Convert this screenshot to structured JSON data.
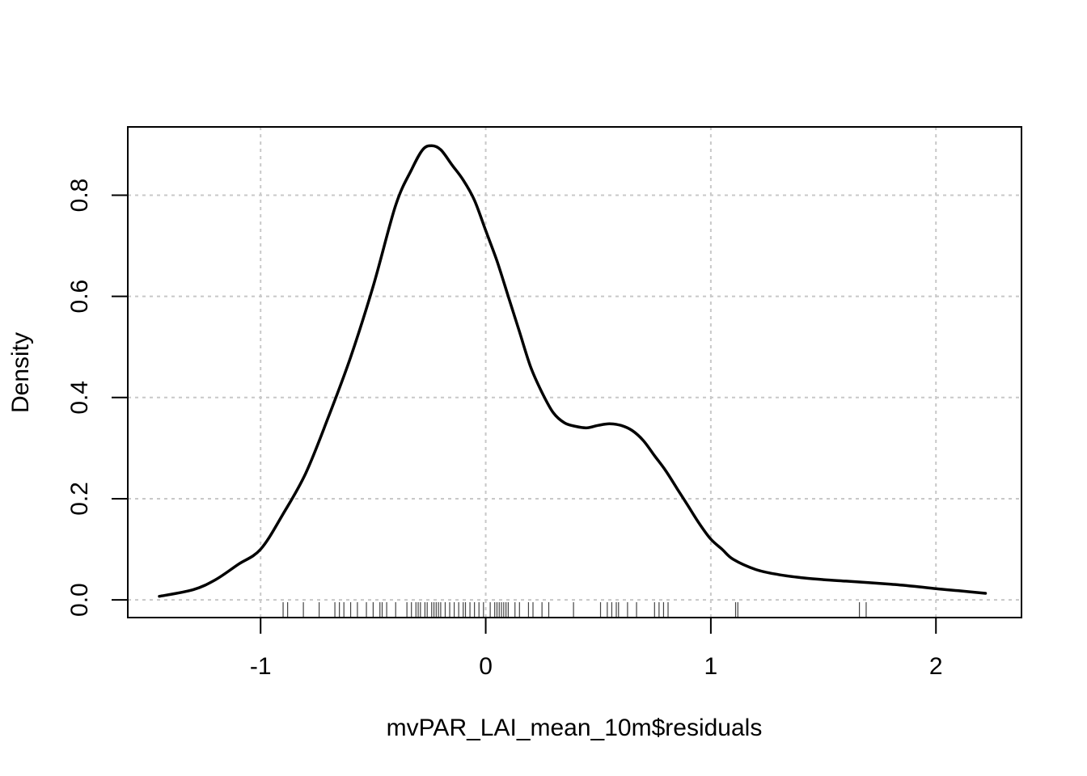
{
  "chart_data": {
    "type": "line",
    "title": "",
    "xlabel": "mvPAR_LAI_mean_10m$residuals",
    "ylabel": "Density",
    "xlim": [
      -1.59,
      2.38
    ],
    "ylim": [
      -0.035,
      0.935
    ],
    "x_ticks": [
      -1,
      0,
      1,
      2
    ],
    "x_tick_labels": [
      "-1",
      "0",
      "1",
      "2"
    ],
    "y_ticks": [
      0.0,
      0.2,
      0.4,
      0.6,
      0.8
    ],
    "y_tick_labels": [
      "0.0",
      "0.2",
      "0.4",
      "0.6",
      "0.8"
    ],
    "grid": true,
    "series": [
      {
        "x": [
          -1.45,
          -1.3,
          -1.2,
          -1.1,
          -1.0,
          -0.9,
          -0.8,
          -0.7,
          -0.6,
          -0.5,
          -0.4,
          -0.33,
          -0.28,
          -0.24,
          -0.2,
          -0.15,
          -0.1,
          -0.05,
          0.0,
          0.05,
          0.1,
          0.15,
          0.2,
          0.25,
          0.3,
          0.35,
          0.4,
          0.45,
          0.5,
          0.55,
          0.6,
          0.65,
          0.7,
          0.75,
          0.8,
          0.85,
          0.9,
          0.95,
          1.0,
          1.05,
          1.1,
          1.2,
          1.3,
          1.4,
          1.5,
          1.6,
          1.7,
          1.8,
          1.9,
          2.0,
          2.1,
          2.22
        ],
        "y": [
          0.007,
          0.02,
          0.04,
          0.07,
          0.1,
          0.17,
          0.25,
          0.36,
          0.48,
          0.62,
          0.78,
          0.85,
          0.89,
          0.898,
          0.89,
          0.86,
          0.83,
          0.79,
          0.73,
          0.67,
          0.6,
          0.53,
          0.46,
          0.41,
          0.37,
          0.35,
          0.343,
          0.34,
          0.345,
          0.348,
          0.345,
          0.335,
          0.315,
          0.285,
          0.255,
          0.22,
          0.185,
          0.15,
          0.12,
          0.1,
          0.08,
          0.06,
          0.05,
          0.044,
          0.04,
          0.037,
          0.034,
          0.031,
          0.027,
          0.022,
          0.018,
          0.013
        ]
      }
    ],
    "rug": [
      -0.9,
      -0.88,
      -0.81,
      -0.74,
      -0.67,
      -0.65,
      -0.63,
      -0.6,
      -0.57,
      -0.53,
      -0.5,
      -0.47,
      -0.46,
      -0.44,
      -0.4,
      -0.35,
      -0.33,
      -0.31,
      -0.3,
      -0.29,
      -0.27,
      -0.26,
      -0.24,
      -0.23,
      -0.22,
      -0.21,
      -0.2,
      -0.18,
      -0.16,
      -0.14,
      -0.12,
      -0.1,
      -0.09,
      -0.07,
      -0.05,
      -0.03,
      -0.01,
      0.02,
      0.04,
      0.05,
      0.06,
      0.07,
      0.08,
      0.09,
      0.1,
      0.13,
      0.15,
      0.19,
      0.21,
      0.25,
      0.28,
      0.39,
      0.51,
      0.54,
      0.56,
      0.58,
      0.59,
      0.63,
      0.67,
      0.75,
      0.77,
      0.79,
      0.81,
      1.11,
      1.12,
      1.66,
      1.69
    ]
  }
}
